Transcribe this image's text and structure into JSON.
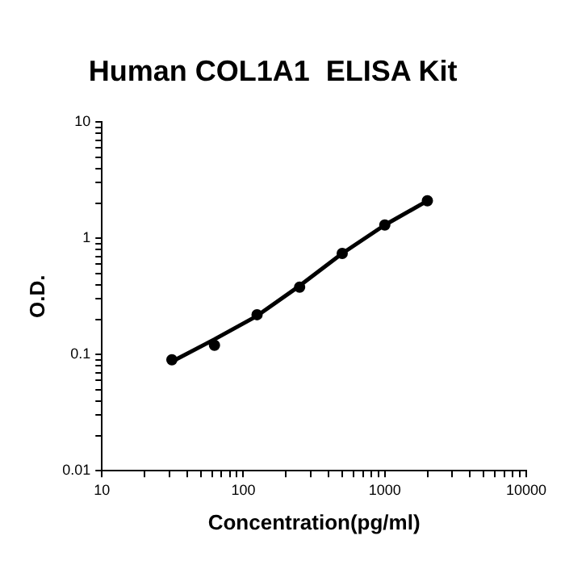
{
  "chart_data": {
    "type": "scatter",
    "title": "Human COL1A1  ELISA Kit",
    "xlabel": "Concentration(pg/ml)",
    "ylabel": "O.D.",
    "log": "xy",
    "grid": false,
    "legend": false,
    "xlim": [
      10,
      10000
    ],
    "ylim": [
      0.01,
      10
    ],
    "xticks": [
      10,
      {
        "value": 20,
        "label": null
      },
      {
        "value": 30,
        "label": null
      },
      {
        "value": 40,
        "label": null
      },
      {
        "value": 50,
        "label": null
      },
      {
        "value": 60,
        "label": null
      },
      {
        "value": 70,
        "label": null
      },
      {
        "value": 80,
        "label": null
      },
      {
        "value": 90,
        "label": null
      },
      100,
      {
        "value": 200,
        "label": null
      },
      {
        "value": 300,
        "label": null
      },
      {
        "value": 400,
        "label": null
      },
      {
        "value": 500,
        "label": null
      },
      {
        "value": 600,
        "label": null
      },
      {
        "value": 700,
        "label": null
      },
      {
        "value": 800,
        "label": null
      },
      {
        "value": 900,
        "label": null
      },
      1000,
      {
        "value": 2000,
        "label": null
      },
      {
        "value": 3000,
        "label": null
      },
      {
        "value": 4000,
        "label": null
      },
      {
        "value": 5000,
        "label": null
      },
      {
        "value": 6000,
        "label": null
      },
      {
        "value": 7000,
        "label": null
      },
      {
        "value": 8000,
        "label": null
      },
      {
        "value": 9000,
        "label": null
      },
      10000
    ],
    "yticks": [
      0.01,
      {
        "value": 0.02,
        "label": null
      },
      {
        "value": 0.03,
        "label": null
      },
      {
        "value": 0.04,
        "label": null
      },
      {
        "value": 0.05,
        "label": null
      },
      {
        "value": 0.06,
        "label": null
      },
      {
        "value": 0.07,
        "label": null
      },
      {
        "value": 0.08,
        "label": null
      },
      {
        "value": 0.09,
        "label": null
      },
      0.1,
      {
        "value": 0.2,
        "label": null
      },
      {
        "value": 0.3,
        "label": null
      },
      {
        "value": 0.4,
        "label": null
      },
      {
        "value": 0.5,
        "label": null
      },
      {
        "value": 0.6,
        "label": null
      },
      {
        "value": 0.7,
        "label": null
      },
      {
        "value": 0.8,
        "label": null
      },
      {
        "value": 0.9,
        "label": null
      },
      1,
      {
        "value": 2,
        "label": null
      },
      {
        "value": 3,
        "label": null
      },
      {
        "value": 4,
        "label": null
      },
      {
        "value": 5,
        "label": null
      },
      {
        "value": 6,
        "label": null
      },
      {
        "value": 7,
        "label": null
      },
      {
        "value": 8,
        "label": null
      },
      {
        "value": 9,
        "label": null
      },
      10
    ],
    "series": [
      {
        "marker": "circle",
        "color": "#000000",
        "x": [
          31.25,
          62.5,
          125,
          250,
          500,
          1000,
          2000
        ],
        "values": [
          0.09,
          0.12,
          0.22,
          0.38,
          0.74,
          1.3,
          2.1
        ]
      },
      {
        "type": "line",
        "marker": "none",
        "line_style": "solid",
        "color": "#000000",
        "x": [
          31.25,
          62.5,
          125,
          250,
          500,
          1000,
          2000
        ],
        "values": [
          0.087,
          0.135,
          0.215,
          0.39,
          0.74,
          1.3,
          2.1
        ]
      }
    ]
  }
}
